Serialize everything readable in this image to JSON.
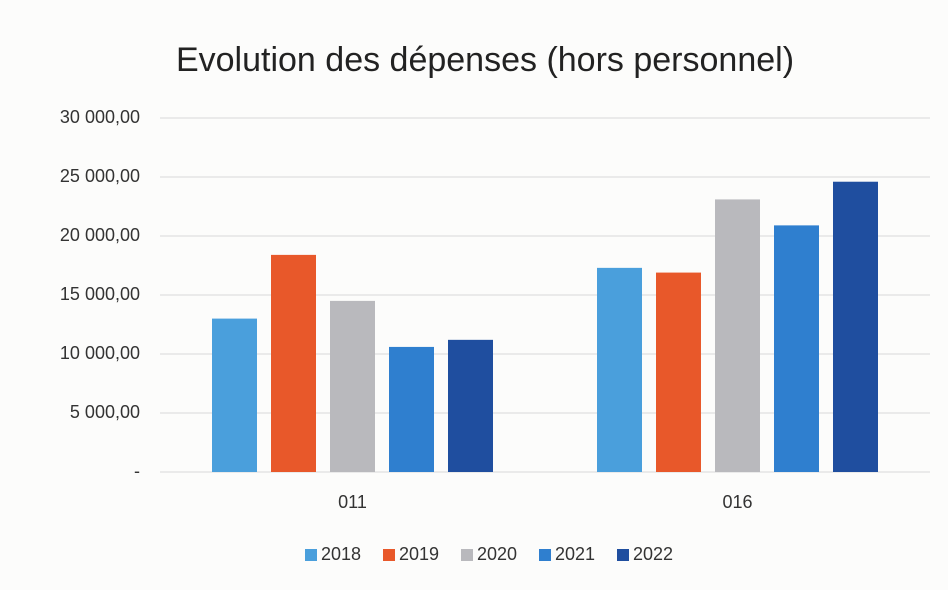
{
  "chart_data": {
    "type": "bar",
    "title": "Evolution des dépenses (hors personnel)",
    "categories": [
      "011",
      "016"
    ],
    "series": [
      {
        "name": "2018",
        "color": "#4a9fdc",
        "values": [
          13000,
          17300
        ]
      },
      {
        "name": "2019",
        "color": "#e8582a",
        "values": [
          18400,
          16900
        ]
      },
      {
        "name": "2020",
        "color": "#b9b9bd",
        "values": [
          14500,
          23100
        ]
      },
      {
        "name": "2021",
        "color": "#2f7fcf",
        "values": [
          10600,
          20900
        ]
      },
      {
        "name": "2022",
        "color": "#1f4e9f",
        "values": [
          11200,
          24600
        ]
      }
    ],
    "ylim": [
      0,
      30000
    ],
    "yticks": [
      {
        "value": 0,
        "label": "-"
      },
      {
        "value": 5000,
        "label": "5 000,00"
      },
      {
        "value": 10000,
        "label": "10 000,00"
      },
      {
        "value": 15000,
        "label": "15 000,00"
      },
      {
        "value": 20000,
        "label": "20 000,00"
      },
      {
        "value": 25000,
        "label": "25 000,00"
      },
      {
        "value": 30000,
        "label": "30 000,00"
      }
    ],
    "grid": true,
    "legend": "bottom"
  }
}
